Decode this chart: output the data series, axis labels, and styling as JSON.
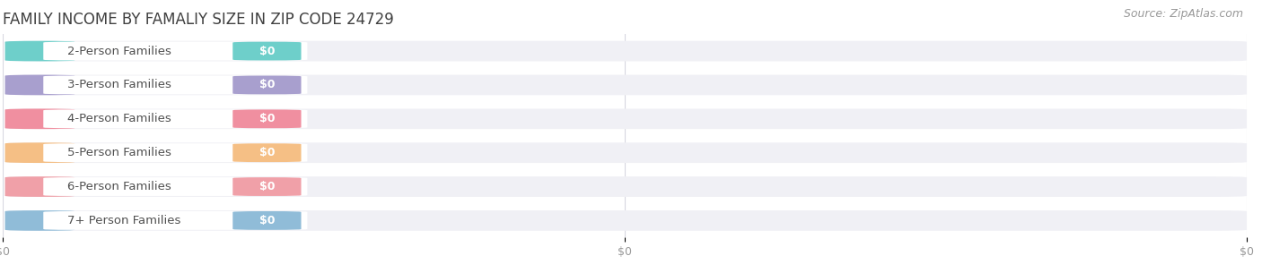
{
  "title": "FAMILY INCOME BY FAMALIY SIZE IN ZIP CODE 24729",
  "source": "Source: ZipAtlas.com",
  "categories": [
    "2-Person Families",
    "3-Person Families",
    "4-Person Families",
    "5-Person Families",
    "6-Person Families",
    "7+ Person Families"
  ],
  "values": [
    0,
    0,
    0,
    0,
    0,
    0
  ],
  "bar_colors": [
    "#6ecfca",
    "#a89fce",
    "#f08fa0",
    "#f5bf85",
    "#f0a0a8",
    "#90bcd8"
  ],
  "bar_bg_color": "#f2f2f7",
  "value_labels": [
    "$0",
    "$0",
    "$0",
    "$0",
    "$0",
    "$0"
  ],
  "xlabel_ticks": [
    "$0",
    "$0",
    "$0"
  ],
  "xtick_positions": [
    0.0,
    0.5,
    1.0
  ],
  "bg_color": "#ffffff",
  "title_fontsize": 12,
  "label_fontsize": 9.5,
  "tick_fontsize": 9,
  "source_fontsize": 9,
  "title_color": "#404040",
  "label_color": "#505050",
  "value_label_color": "#ffffff",
  "tick_color": "#999999",
  "source_color": "#999999",
  "row_bg_color": "#f0f0f5",
  "row_line_color": "#e0e0e8"
}
